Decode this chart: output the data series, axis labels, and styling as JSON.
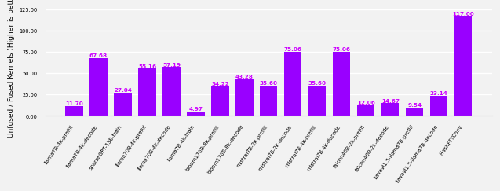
{
  "categories": [
    "llama7B-4k-prefill",
    "llama7B-4k-decode",
    "sparseGPT-13B-train",
    "llama70B-4k-prefill",
    "llama70B-4k-decode",
    "llama7B-4k-train",
    "bloom176B-8k-prefill",
    "bloom176B-8k-decode",
    "mistral7B-2k-prefill",
    "mistral7B-2k-decode",
    "mistral7B-4k-prefill",
    "mistral7B-4k-decode",
    "falcon40B-2k-prefill",
    "falcon40B-2k-decode",
    "llavavl1.5-llama7B-prefill",
    "llavavl1.5-llama7B-decode",
    "FlashFFTConv"
  ],
  "values": [
    11.7,
    67.68,
    27.04,
    55.16,
    57.19,
    4.97,
    34.22,
    43.28,
    35.6,
    75.06,
    35.6,
    75.06,
    12.06,
    14.67,
    9.54,
    23.14,
    117.0
  ],
  "bar_color": "#9900ff",
  "label_color": "#cc00ff",
  "ylabel": "Unfused / Fused Kernels (Higher is better)",
  "ylim": [
    0,
    125
  ],
  "yticks": [
    0.0,
    25.0,
    50.0,
    75.0,
    100.0,
    125.0
  ],
  "background_color": "#f2f2f2",
  "grid_color": "#ffffff",
  "label_fontsize": 5.2,
  "tick_fontsize": 4.8,
  "ylabel_fontsize": 6.5
}
